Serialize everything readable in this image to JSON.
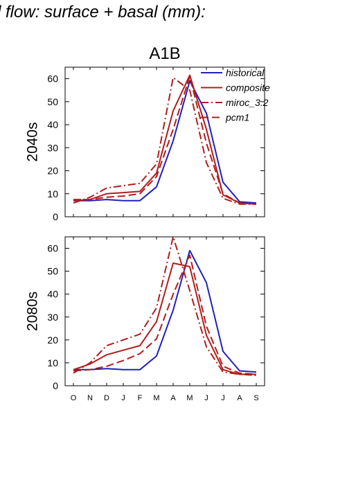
{
  "header_title": "d flow: surface + basal (mm):",
  "chart_data": [
    {
      "type": "line",
      "title": "A1B",
      "ylabel": "2040s",
      "xlabel": "",
      "categories": [
        "O",
        "N",
        "D",
        "J",
        "F",
        "M",
        "A",
        "M",
        "J",
        "J",
        "A",
        "S"
      ],
      "ylim": [
        0,
        65
      ],
      "yticks": [
        0,
        10,
        20,
        30,
        40,
        50,
        60
      ],
      "grid": false,
      "legend_position": "top-right",
      "show_xtick_labels": false,
      "series": [
        {
          "name": "historical",
          "color": "#1f1fbf",
          "dash": "solid",
          "values": [
            7,
            7,
            7.5,
            7,
            7,
            13,
            33,
            59,
            45,
            15,
            6.5,
            6
          ]
        },
        {
          "name": "composite",
          "color": "#b01c1c",
          "dash": "solid",
          "values": [
            7,
            7.5,
            10,
            10.5,
            11,
            19,
            46,
            61.5,
            38,
            9.5,
            6,
            5.5
          ]
        },
        {
          "name": "miroc_3.2",
          "color": "#b01c1c",
          "dash": "dashdot",
          "values": [
            6,
            8.5,
            12.5,
            13.5,
            14.5,
            23,
            60.5,
            55,
            23.5,
            8,
            5.5,
            5.5
          ]
        },
        {
          "name": "pcm1",
          "color": "#b01c1c",
          "dash": "dash",
          "values": [
            7.5,
            7.5,
            8.5,
            9,
            10,
            17.5,
            38,
            61,
            32,
            10,
            6,
            5.5
          ]
        }
      ]
    },
    {
      "type": "line",
      "title": "",
      "ylabel": "2080s",
      "xlabel": "",
      "categories": [
        "O",
        "N",
        "D",
        "J",
        "F",
        "M",
        "A",
        "M",
        "J",
        "J",
        "A",
        "S"
      ],
      "ylim": [
        0,
        65
      ],
      "yticks": [
        0,
        10,
        20,
        30,
        40,
        50,
        60
      ],
      "grid": false,
      "show_xtick_labels": true,
      "series": [
        {
          "name": "historical",
          "color": "#1f1fbf",
          "dash": "solid",
          "values": [
            7,
            7,
            7.5,
            7,
            7,
            13,
            33,
            59,
            45,
            15,
            6.5,
            6
          ]
        },
        {
          "name": "composite",
          "color": "#b01c1c",
          "dash": "solid",
          "values": [
            7,
            9.5,
            13.5,
            15.5,
            17.5,
            28,
            53.5,
            52,
            22,
            7,
            5,
            5
          ]
        },
        {
          "name": "miroc_3.2",
          "color": "#b01c1c",
          "dash": "dashdot",
          "values": [
            5.5,
            10,
            17.5,
            20,
            22.5,
            34,
            65,
            41.5,
            17,
            6,
            5,
            4.5
          ]
        },
        {
          "name": "pcm1",
          "color": "#b01c1c",
          "dash": "dash",
          "values": [
            6.5,
            7,
            8.5,
            11,
            14,
            20.5,
            40,
            57,
            26,
            8.5,
            5.5,
            5
          ]
        }
      ]
    }
  ]
}
